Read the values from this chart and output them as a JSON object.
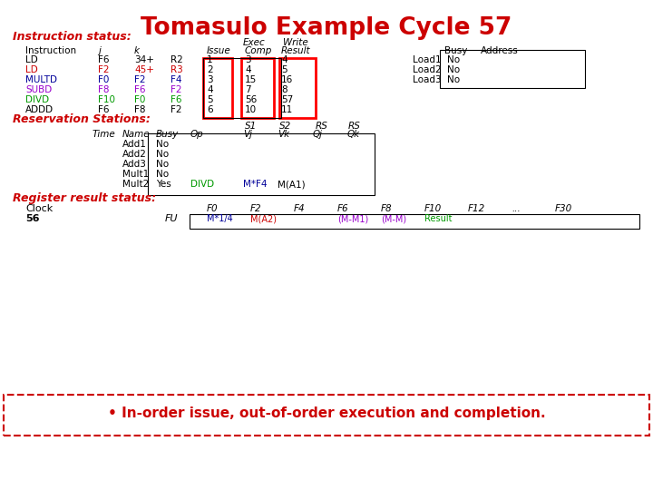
{
  "title": "Tomasulo Example Cycle 57",
  "title_color": "#cc0000",
  "bg_color": "#ffffff",
  "bottom_text": "• In-order issue, out-of-order execution and completion.",
  "bottom_text_color": "#cc0000",
  "instructions": [
    {
      "name": "LD",
      "name_color": "#000000",
      "j": "F6",
      "j_color": "#000000",
      "k": "34+",
      "k_color": "#000000",
      "dest": "R2",
      "dest_color": "#000000",
      "issue": "1",
      "exec": "3",
      "write": "4"
    },
    {
      "name": "LD",
      "name_color": "#cc0000",
      "j": "F2",
      "j_color": "#cc0000",
      "k": "45+",
      "k_color": "#cc0000",
      "dest": "R3",
      "dest_color": "#cc0000",
      "issue": "2",
      "exec": "4",
      "write": "5"
    },
    {
      "name": "MULTD",
      "name_color": "#000099",
      "j": "F0",
      "j_color": "#000099",
      "k": "F2",
      "k_color": "#000099",
      "dest": "F4",
      "dest_color": "#000099",
      "issue": "3",
      "exec": "15",
      "write": "16"
    },
    {
      "name": "SUBD",
      "name_color": "#9900cc",
      "j": "F8",
      "j_color": "#9900cc",
      "k": "F6",
      "k_color": "#9900cc",
      "dest": "F2",
      "dest_color": "#9900cc",
      "issue": "4",
      "exec": "7",
      "write": "8"
    },
    {
      "name": "DIVD",
      "name_color": "#009900",
      "j": "F10",
      "j_color": "#009900",
      "k": "F0",
      "k_color": "#009900",
      "dest": "F6",
      "dest_color": "#009900",
      "issue": "5",
      "exec": "56",
      "write": "57"
    },
    {
      "name": "ADDD",
      "name_color": "#000000",
      "j": "F6",
      "j_color": "#000000",
      "k": "F8",
      "k_color": "#000000",
      "dest": "F2",
      "dest_color": "#000000",
      "issue": "6",
      "exec": "10",
      "write": "11"
    }
  ],
  "rs_stations": [
    {
      "name": "Add1",
      "busy": "No",
      "op": "",
      "op_color": "#000000",
      "vj": "",
      "vj_color": "#000000",
      "vk": "",
      "vk_color": "#000000"
    },
    {
      "name": "Add2",
      "busy": "No",
      "op": "",
      "op_color": "#000000",
      "vj": "",
      "vj_color": "#000000",
      "vk": "",
      "vk_color": "#000000"
    },
    {
      "name": "Add3",
      "busy": "No",
      "op": "",
      "op_color": "#000000",
      "vj": "",
      "vj_color": "#000000",
      "vk": "",
      "vk_color": "#000000"
    },
    {
      "name": "Mult1",
      "busy": "No",
      "op": "",
      "op_color": "#000000",
      "vj": "",
      "vj_color": "#000000",
      "vk": "",
      "vk_color": "#000000"
    },
    {
      "name": "Mult2",
      "busy": "Yes",
      "op": "DIVD",
      "op_color": "#009900",
      "vj": "M*F4",
      "vj_color": "#000099",
      "vk": "M(A1)",
      "vk_color": "#000000"
    }
  ],
  "load_stations": [
    {
      "name": "Load1",
      "busy": "No"
    },
    {
      "name": "Load2",
      "busy": "No"
    },
    {
      "name": "Load3",
      "busy": "No"
    }
  ],
  "reg_headers": [
    "F0",
    "F2",
    "F4",
    "F6",
    "F8",
    "F10",
    "F12",
    "...",
    "F30"
  ],
  "reg_values": [
    {
      "val": "M*1/4",
      "color": "#000099"
    },
    {
      "val": "M(A2)",
      "color": "#cc0000"
    },
    {
      "val": "",
      "color": "#000000"
    },
    {
      "val": "(M-M1)",
      "color": "#9900cc"
    },
    {
      "val": "(M-M)",
      "color": "#9900cc"
    },
    {
      "val": "Result",
      "color": "#009900"
    },
    {
      "val": "",
      "color": "#000000"
    },
    {
      "val": "",
      "color": "#000000"
    },
    {
      "val": "",
      "color": "#000000"
    }
  ]
}
